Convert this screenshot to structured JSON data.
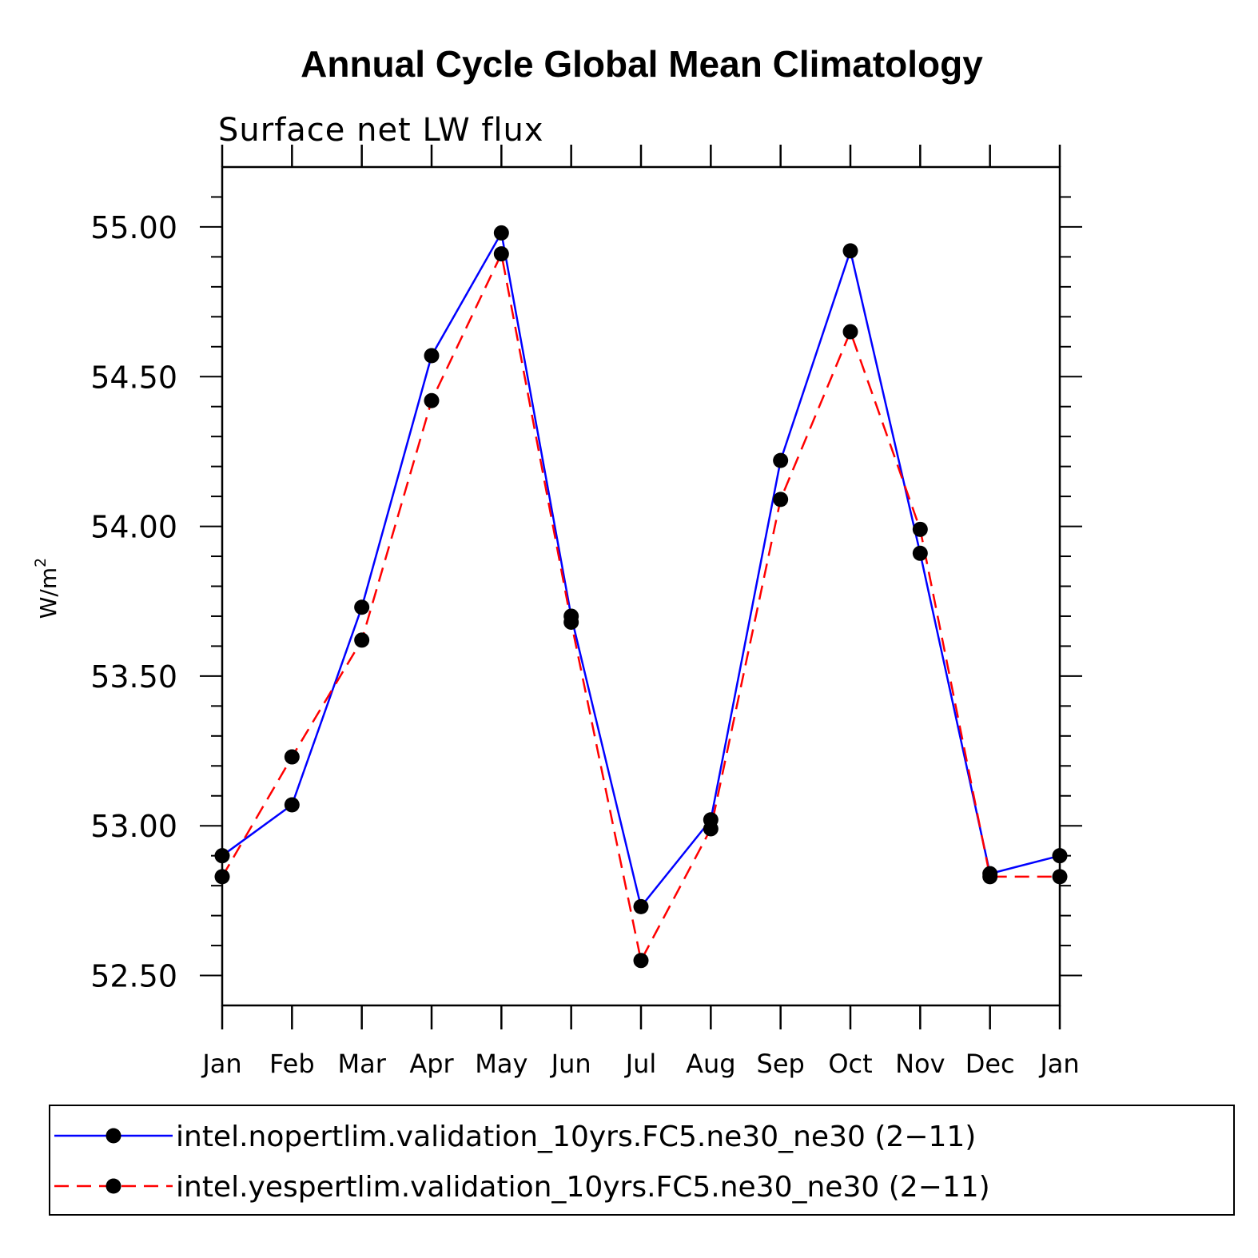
{
  "chart_data": {
    "type": "line",
    "title": "Annual Cycle Global Mean Climatology",
    "subtitle": "Surface net LW flux",
    "ylabel": "W/m",
    "ylabel_sup": "2",
    "ylim": [
      52.4,
      55.2
    ],
    "yticks": [
      52.5,
      53.0,
      53.5,
      54.0,
      54.5,
      55.0
    ],
    "ytick_labels": [
      "52.50",
      "53.00",
      "53.50",
      "54.00",
      "54.50",
      "55.00"
    ],
    "categories": [
      "Jan",
      "Feb",
      "Mar",
      "Apr",
      "May",
      "Jun",
      "Jul",
      "Aug",
      "Sep",
      "Oct",
      "Nov",
      "Dec",
      "Jan"
    ],
    "series": [
      {
        "name": "intel.nopertlim.validation_10yrs.FC5.ne30_ne30 (2−11)",
        "color": "#0000ff",
        "dash": "solid",
        "values": [
          52.9,
          53.07,
          53.73,
          54.57,
          54.98,
          53.7,
          52.73,
          53.02,
          54.22,
          54.92,
          53.91,
          52.84,
          52.9
        ]
      },
      {
        "name": "intel.yespertlim.validation_10yrs.FC5.ne30_ne30 (2−11)",
        "color": "#ff0000",
        "dash": "dashed",
        "values": [
          52.83,
          53.23,
          53.62,
          54.42,
          54.91,
          53.68,
          52.55,
          52.99,
          54.09,
          54.65,
          53.99,
          52.83,
          52.83
        ]
      }
    ],
    "legend_position": "bottom"
  }
}
